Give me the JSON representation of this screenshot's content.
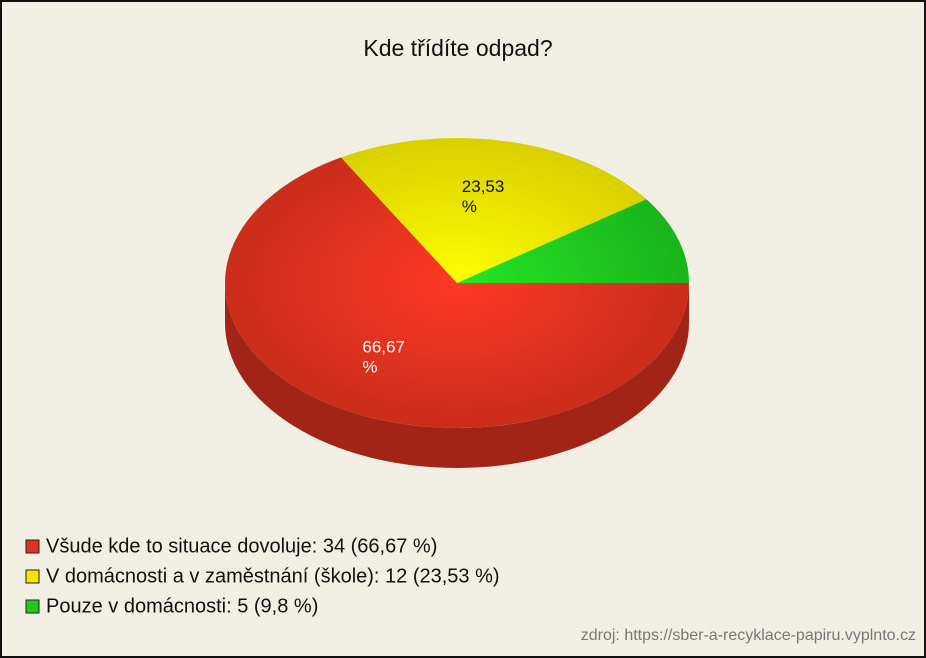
{
  "chart_data": {
    "type": "pie",
    "title": "Kde třídíte odpad?",
    "values": [
      66.67,
      23.53,
      9.8
    ],
    "value_labels": [
      "66,67 %",
      "23,53 %",
      null
    ],
    "colors": [
      "#e0321e",
      "#f2e600",
      "#1ec81e"
    ],
    "legend_labels": [
      "Všude kde to situace dovoluje: 34 (66,67 %)",
      "V domácnosti a v zaměstnání (škole): 12 (23,53 %)",
      "Pouze v domácnosti: 5 (9,8 %)"
    ],
    "source": "zdroj: https://sber-a-recyklace-papiru.vyplnto.cz"
  }
}
